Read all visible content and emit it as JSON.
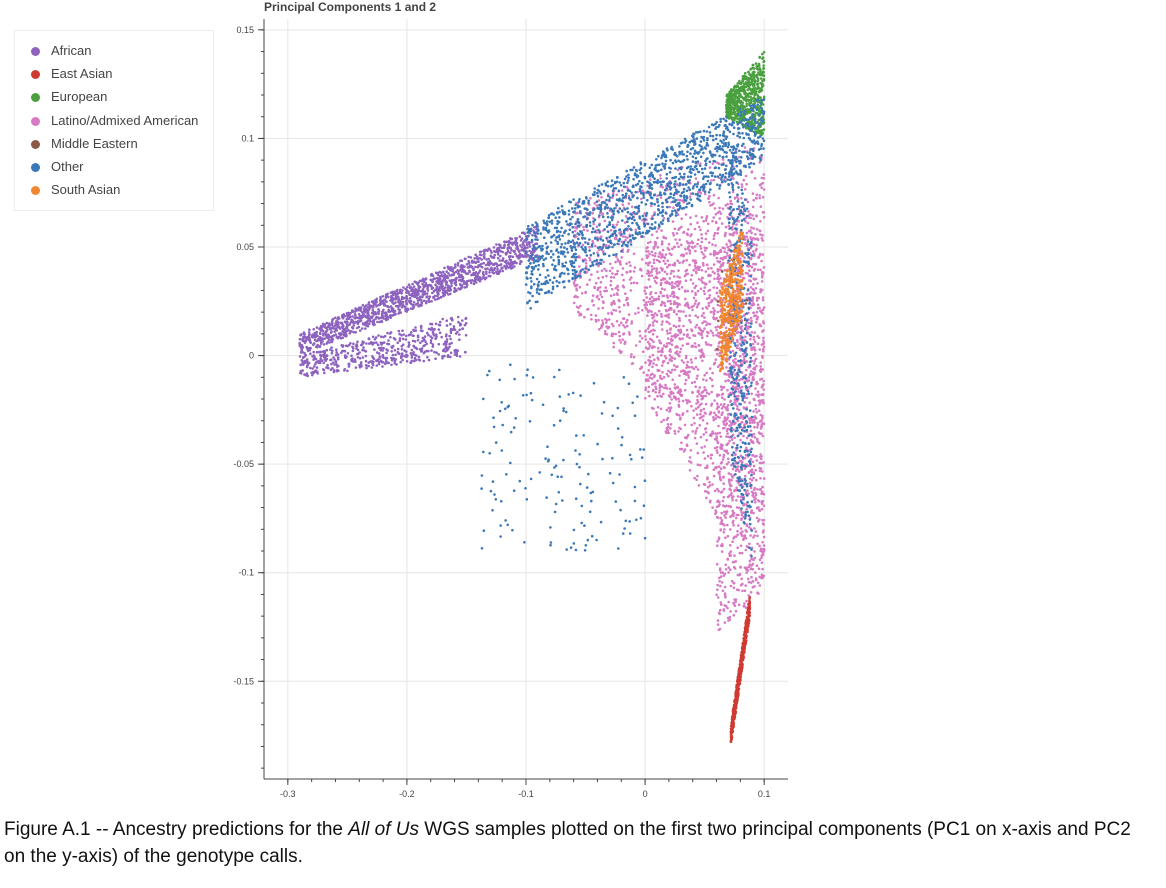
{
  "chart_data": {
    "type": "scatter",
    "title": "Principal Components 1 and 2",
    "xlabel": "",
    "ylabel": "",
    "xlim": [
      -0.32,
      0.12
    ],
    "ylim": [
      -0.195,
      0.155
    ],
    "xticks": [
      -0.3,
      -0.2,
      -0.1,
      0,
      0.1
    ],
    "xtick_labels": [
      "-0.3",
      "-0.2",
      "-0.1",
      "0",
      "0.1"
    ],
    "yticks": [
      0.15,
      0.1,
      0.05,
      0,
      -0.05,
      -0.1,
      -0.15
    ],
    "ytick_labels": [
      "0.15",
      "0.1",
      "0.05",
      "0",
      "-0.05",
      "-0.1",
      "-0.15"
    ],
    "grid": true,
    "legend_position": "outside-left",
    "series": [
      {
        "name": "African",
        "color": "#8e63bf",
        "clusters": [
          {
            "x": [
              -0.29,
              -0.09
            ],
            "y_low": [
              0.0,
              0.045
            ],
            "y_high": [
              0.01,
              0.06
            ],
            "n": 1300
          },
          {
            "x": [
              -0.29,
              -0.15
            ],
            "y_low": [
              -0.01,
              0.0
            ],
            "y_high": [
              0.0,
              0.02
            ],
            "n": 500
          }
        ]
      },
      {
        "name": "East Asian",
        "color": "#cf3a33",
        "clusters": [
          {
            "x": [
              0.072,
              0.088
            ],
            "y_low": [
              -0.18,
              -0.12
            ],
            "y_high": [
              -0.17,
              -0.11
            ],
            "n": 500
          }
        ]
      },
      {
        "name": "European",
        "color": "#4aa03f",
        "clusters": [
          {
            "x": [
              0.068,
              0.1
            ],
            "y_low": [
              0.11,
              0.1
            ],
            "y_high": [
              0.12,
              0.14
            ],
            "n": 650
          }
        ]
      },
      {
        "name": "Latino/Admixed American",
        "color": "#d77ac4",
        "clusters": [
          {
            "x": [
              -0.06,
              0.1
            ],
            "y_low": [
              0.02,
              -0.06
            ],
            "y_high": [
              0.07,
              0.1
            ],
            "n": 1100
          },
          {
            "x": [
              0.0,
              0.1
            ],
            "y_low": [
              -0.02,
              -0.11
            ],
            "y_high": [
              0.05,
              0.08
            ],
            "n": 1100
          },
          {
            "x": [
              0.06,
              0.1
            ],
            "y_low": [
              -0.13,
              -0.11
            ],
            "y_high": [
              0.05,
              0.06
            ],
            "n": 700
          }
        ]
      },
      {
        "name": "Middle Eastern",
        "color": "#8c5a46",
        "clusters": [
          {
            "x": [
              0.06,
              0.09
            ],
            "y_low": [
              0.0,
              0.0
            ],
            "y_high": [
              0.04,
              0.04
            ],
            "n": 20
          }
        ]
      },
      {
        "name": "Other",
        "color": "#3a78b8",
        "clusters": [
          {
            "x": [
              -0.1,
              0.1
            ],
            "y_low": [
              0.02,
              0.09
            ],
            "y_high": [
              0.06,
              0.12
            ],
            "n": 1300
          },
          {
            "x": [
              0.07,
              0.09
            ],
            "y_low": [
              -0.04,
              -0.1
            ],
            "y_high": [
              0.1,
              0.06
            ],
            "n": 400
          },
          {
            "x": [
              -0.14,
              0.0
            ],
            "y_low": [
              -0.09,
              -0.09
            ],
            "y_high": [
              0.0,
              -0.01
            ],
            "n": 150
          }
        ]
      },
      {
        "name": "South Asian",
        "color": "#f0862f",
        "clusters": [
          {
            "x": [
              0.063,
              0.082
            ],
            "y_low": [
              -0.01,
              0.02
            ],
            "y_high": [
              0.03,
              0.06
            ],
            "n": 400
          }
        ]
      }
    ]
  },
  "caption": {
    "prefix": "Figure A.1 -- Ancestry predictions for the ",
    "italic": "All of Us",
    "suffix": " WGS samples plotted on the first two principal components (PC1 on x-axis and PC2 on the y-axis) of the genotype calls."
  }
}
